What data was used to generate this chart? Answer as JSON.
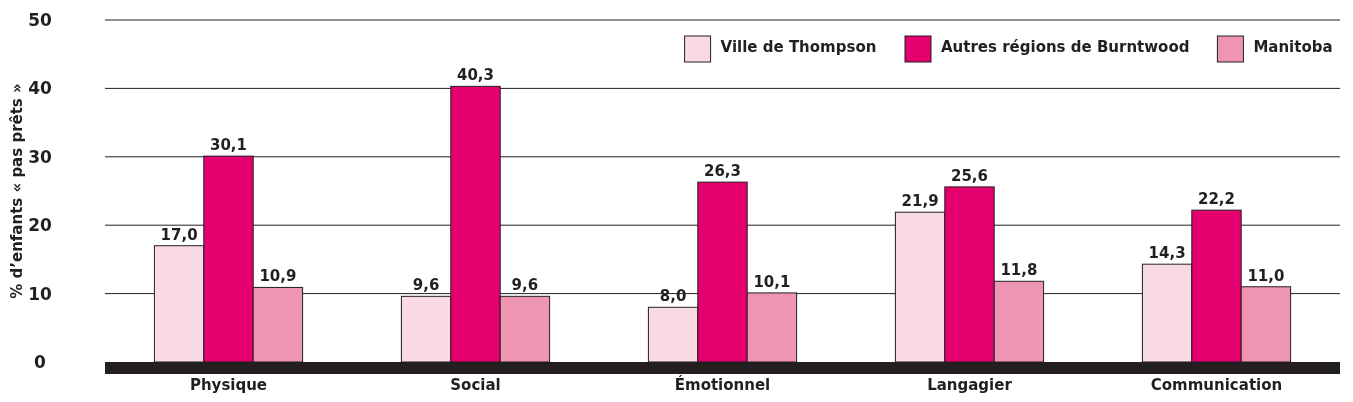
{
  "chart_data": {
    "type": "bar",
    "ylabel": "% d’enfants « pas prêts »",
    "categories": [
      "Physique",
      "Social",
      "Émotionnel",
      "Langagier",
      "Communication"
    ],
    "series": [
      {
        "name": "Ville de Thompson",
        "color": "#f9d9e3",
        "values": [
          17.0,
          9.6,
          8.0,
          21.9,
          14.3
        ],
        "value_labels": [
          "17,0",
          "9,6",
          "8,0",
          "21,9",
          "14,3"
        ]
      },
      {
        "name": "Autres régions de Burntwood",
        "color": "#e4006f",
        "values": [
          30.1,
          40.3,
          26.3,
          25.6,
          22.2
        ],
        "value_labels": [
          "30,1",
          "40,3",
          "26,3",
          "25,6",
          "22,2"
        ]
      },
      {
        "name": "Manitoba",
        "color": "#ee95b3",
        "values": [
          10.9,
          9.6,
          10.1,
          11.8,
          11.0
        ],
        "value_labels": [
          "10,9",
          "9,6",
          "10,1",
          "11,8",
          "11,0"
        ]
      }
    ],
    "ylim": [
      0,
      50
    ],
    "yticks": [
      0,
      10,
      20,
      30,
      40,
      50
    ],
    "grid": "y",
    "legend": "top right"
  }
}
